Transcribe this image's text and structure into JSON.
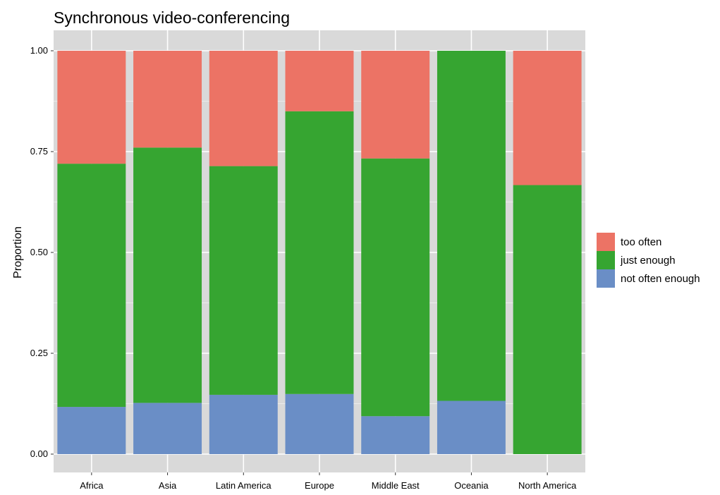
{
  "chart_data": {
    "type": "bar",
    "stacked": true,
    "title": "Synchronous video-conferencing",
    "xlabel": "",
    "ylabel": "Proportion",
    "ylim": [
      0,
      1
    ],
    "yticks": [
      "0.00",
      "0.25",
      "0.50",
      "0.75",
      "1.00"
    ],
    "categories": [
      "Africa",
      "Asia",
      "Latin America",
      "Europe",
      "Middle East",
      "Oceania",
      "North America"
    ],
    "series": [
      {
        "name": "not often enough",
        "color": "#6a8ec6",
        "values": [
          0.117,
          0.127,
          0.147,
          0.149,
          0.094,
          0.132,
          0.0
        ]
      },
      {
        "name": "just enough",
        "color": "#36a531",
        "values": [
          0.603,
          0.633,
          0.567,
          0.701,
          0.639,
          0.868,
          0.667
        ]
      },
      {
        "name": "too often",
        "color": "#ec7365",
        "values": [
          0.28,
          0.24,
          0.286,
          0.15,
          0.267,
          0.0,
          0.333
        ]
      }
    ],
    "legend": {
      "position": "right",
      "order": [
        "too often",
        "just enough",
        "not often enough"
      ]
    },
    "grid": true,
    "panel_background": "#d9d9d9"
  }
}
